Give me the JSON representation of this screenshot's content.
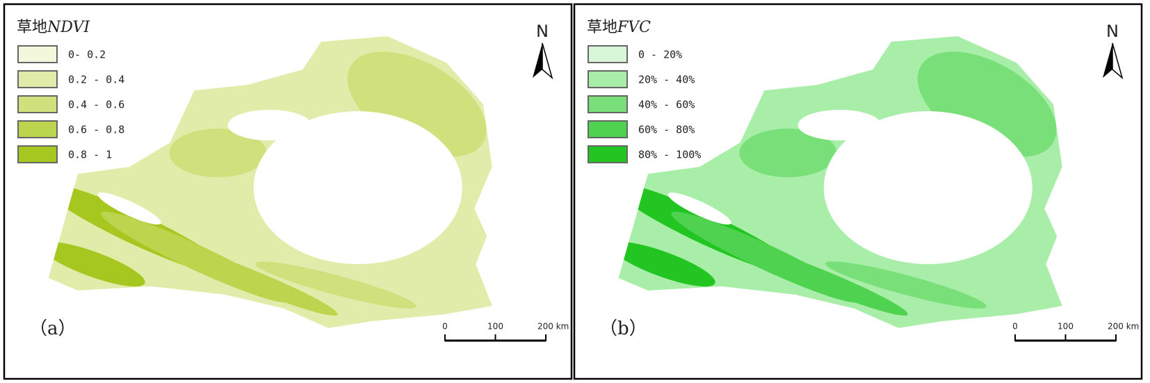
{
  "panels": [
    {
      "title_cn": "草地",
      "title_en": "NDVI",
      "panel_label": "（a）",
      "north": "N",
      "scale_labels": [
        "0",
        "100",
        "200 km"
      ],
      "legend": [
        {
          "label": "0- 0.2",
          "color": "#f3f7dc"
        },
        {
          "label": "0.2 - 0.4",
          "color": "#e2ecaa"
        },
        {
          "label": "0.4 - 0.6",
          "color": "#cfe07c"
        },
        {
          "label": "0.6 - 0.8",
          "color": "#bcd54f"
        },
        {
          "label": "0.8 - 1",
          "color": "#a6c71f"
        }
      ]
    },
    {
      "title_cn": "草地",
      "title_en": "FVC",
      "panel_label": "（b）",
      "north": "N",
      "scale_labels": [
        "0",
        "100",
        "200 km"
      ],
      "legend": [
        {
          "label": "0 - 20%",
          "color": "#d8f7d8"
        },
        {
          "label": "20% - 40%",
          "color": "#a8eea8"
        },
        {
          "label": "40% - 60%",
          "color": "#79e079"
        },
        {
          "label": "60% - 80%",
          "color": "#4fd24f"
        },
        {
          "label": "80% - 100%",
          "color": "#22c522"
        }
      ]
    }
  ]
}
